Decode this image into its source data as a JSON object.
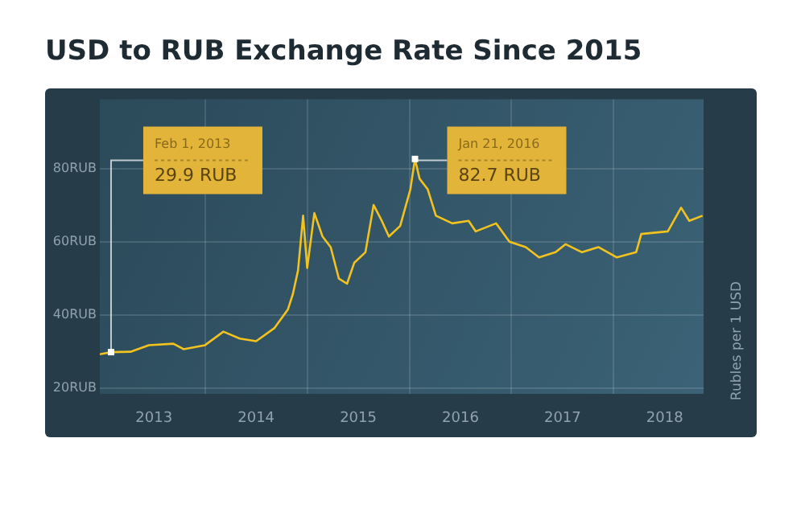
{
  "chart_data": {
    "type": "line",
    "title": "USD to RUB Exchange Rate Since 2015",
    "ylabel": "Rubles per 1 USD",
    "x": [
      2012.97,
      2013.08,
      2013.27,
      2013.45,
      2013.69,
      2013.79,
      2014.0,
      2014.18,
      2014.34,
      2014.5,
      2014.68,
      2014.81,
      2014.86,
      2014.91,
      2014.96,
      2015.0,
      2015.07,
      2015.15,
      2015.23,
      2015.31,
      2015.39,
      2015.46,
      2015.57,
      2015.65,
      2015.73,
      2015.8,
      2015.91,
      2016.01,
      2016.055,
      2016.1,
      2016.18,
      2016.26,
      2016.42,
      2016.58,
      2016.65,
      2016.85,
      2016.98,
      2017.14,
      2017.27,
      2017.43,
      2017.53,
      2017.69,
      2017.85,
      2018.03,
      2018.22,
      2018.27,
      2018.53,
      2018.66,
      2018.74,
      2018.87
    ],
    "series": [
      {
        "color": "#f2c21e",
        "values": [
          29.3,
          29.9,
          30.0,
          31.8,
          32.2,
          30.7,
          31.8,
          35.5,
          33.6,
          32.9,
          36.5,
          41.5,
          45.8,
          52.2,
          67.2,
          52.9,
          67.9,
          61.5,
          58.6,
          50.0,
          48.6,
          54.3,
          57.2,
          70.1,
          65.8,
          61.5,
          64.4,
          74.4,
          82.7,
          77.3,
          74.4,
          67.2,
          65.1,
          65.8,
          62.9,
          65.1,
          60.1,
          58.6,
          55.8,
          57.2,
          59.4,
          57.2,
          58.6,
          55.8,
          57.2,
          62.2,
          62.9,
          69.4,
          65.8,
          67.2
        ]
      }
    ],
    "xlim": [
      2012.97,
      2018.88
    ],
    "xticks": [
      {
        "value": 2013.5,
        "label": "2013"
      },
      {
        "value": 2014,
        "label": null
      },
      {
        "value": 2014.5,
        "label": "2014"
      },
      {
        "value": 2015,
        "label": null
      },
      {
        "value": 2015.5,
        "label": "2015"
      },
      {
        "value": 2016,
        "label": null
      },
      {
        "value": 2016.5,
        "label": "2016"
      },
      {
        "value": 2017,
        "label": null
      },
      {
        "value": 2017.5,
        "label": "2017"
      },
      {
        "value": 2018,
        "label": null
      },
      {
        "value": 2018.5,
        "label": "2018"
      }
    ],
    "ylim": [
      18.5,
      99
    ],
    "yticks": [
      {
        "value": 20,
        "label": "20RUB"
      },
      {
        "value": 40,
        "label": "40RUB"
      },
      {
        "value": 60,
        "label": "60RUB"
      },
      {
        "value": 80,
        "label": "80RUB"
      }
    ],
    "annotations": [
      {
        "text": "Feb 1, 2013\n29.9 RUB",
        "x": 2013.08,
        "y": 29.9
      },
      {
        "text": "Jan 21, 2016\n82.7 RUB",
        "x": 2016.055,
        "y": 82.7
      }
    ],
    "grid": true,
    "legend": false,
    "marker": "none",
    "line_style": "solid"
  }
}
